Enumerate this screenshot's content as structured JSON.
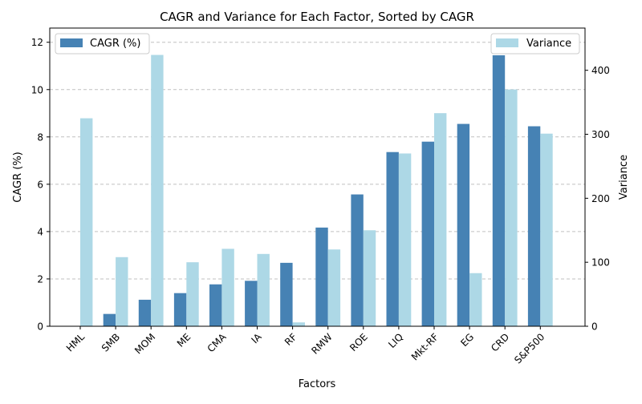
{
  "chart_data": {
    "type": "bar",
    "title": "CAGR and Variance for Each Factor, Sorted by CAGR",
    "xlabel": "Factors",
    "ylabel_left": "CAGR (%)",
    "ylabel_right": "Variance",
    "categories": [
      "HML",
      "SMB",
      "MOM",
      "ME",
      "CMA",
      "IA",
      "RF",
      "RMW",
      "ROE",
      "LIQ",
      "Mkt-RF",
      "EG",
      "CRD",
      "S&P500"
    ],
    "series": [
      {
        "name": "CAGR (%)",
        "axis": "left",
        "color": "#4682b4",
        "values": [
          0.0,
          0.52,
          1.12,
          1.4,
          1.77,
          1.92,
          2.68,
          4.17,
          5.57,
          7.36,
          7.8,
          8.55,
          11.45,
          8.45
        ]
      },
      {
        "name": "Variance",
        "axis": "right",
        "color": "#add8e6",
        "values": [
          325,
          108,
          424,
          100,
          121,
          113,
          6,
          120,
          150,
          270,
          333,
          83,
          370,
          301
        ]
      }
    ],
    "ylim_left": [
      0,
      12.6
    ],
    "ylim_right": [
      0,
      466
    ],
    "yticks_left": [
      0,
      2,
      4,
      6,
      8,
      10,
      12
    ],
    "yticks_right": [
      0,
      100,
      200,
      300,
      400
    ],
    "grid": "horizontal dashed",
    "legend_left": "top-left",
    "legend_right": "top-right"
  }
}
